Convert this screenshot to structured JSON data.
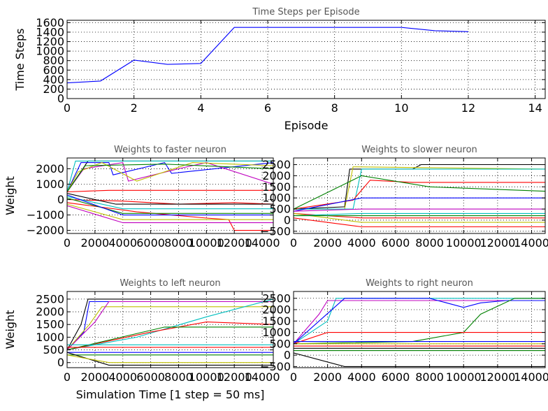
{
  "chart_data": [
    {
      "type": "line",
      "title": "Time Steps per Episode",
      "xlabel": "Episode",
      "ylabel": "Time Steps",
      "xlim": [
        0,
        14.3
      ],
      "ylim": [
        0,
        1650
      ],
      "xticks": [
        0,
        2,
        4,
        6,
        8,
        10,
        12,
        14
      ],
      "yticks": [
        0,
        200,
        400,
        600,
        800,
        1000,
        1200,
        1400,
        1600
      ],
      "grid": true,
      "series": [
        {
          "color": "#0000ff",
          "x": [
            0,
            1,
            2,
            3,
            4,
            5,
            6,
            7,
            8,
            9,
            10,
            11,
            12
          ],
          "y": [
            330,
            370,
            810,
            720,
            740,
            1500,
            1500,
            1500,
            1500,
            1500,
            1500,
            1430,
            1410
          ]
        }
      ]
    },
    {
      "type": "line",
      "title": "Weights to faster neuron",
      "xlabel": "",
      "ylabel": "Weight",
      "xlim": [
        0,
        14800
      ],
      "ylim": [
        -2200,
        2700
      ],
      "xticks": [
        0,
        2000,
        4000,
        6000,
        8000,
        10000,
        12000,
        14000
      ],
      "yticks": [
        -2000,
        -1000,
        0,
        1000,
        2000
      ],
      "grid": true,
      "series": [
        {
          "color": "#000000",
          "x": [
            0,
            1500,
            2300,
            2400,
            14800
          ],
          "y": [
            500,
            2500,
            2500,
            2500,
            2500
          ]
        },
        {
          "color": "#0000ff",
          "x": [
            0,
            1000,
            3000,
            3300,
            7000,
            7500,
            14800
          ],
          "y": [
            500,
            2400,
            2400,
            1600,
            2400,
            1700,
            2400
          ]
        },
        {
          "color": "#bf00bf",
          "x": [
            0,
            1200,
            4000,
            4400,
            8000,
            10000,
            14800
          ],
          "y": [
            500,
            2000,
            2400,
            1200,
            2000,
            2400,
            1000
          ]
        },
        {
          "color": "#bfbf00",
          "x": [
            0,
            800,
            2500,
            5000,
            9000,
            14800
          ],
          "y": [
            500,
            1800,
            2400,
            1200,
            2400,
            2200
          ]
        },
        {
          "color": "#00bfbf",
          "x": [
            0,
            600,
            4000,
            14800
          ],
          "y": [
            500,
            2500,
            2500,
            2500
          ]
        },
        {
          "color": "#008000",
          "x": [
            0,
            1300,
            7000,
            14800
          ],
          "y": [
            500,
            2200,
            2300,
            2000
          ]
        },
        {
          "color": "#ff0000",
          "x": [
            0,
            3000,
            4500,
            14800
          ],
          "y": [
            500,
            600,
            600,
            600
          ]
        },
        {
          "color": "#ff0000",
          "x": [
            0,
            4000,
            8000,
            12000,
            14800
          ],
          "y": [
            0,
            -100,
            -300,
            -200,
            -300
          ]
        },
        {
          "color": "#ff0000",
          "x": [
            0,
            5000,
            10000,
            11600,
            12000,
            14800
          ],
          "y": [
            -200,
            -800,
            -1200,
            -1300,
            -2000,
            -2000
          ]
        },
        {
          "color": "#bfbf00",
          "x": [
            0,
            4000,
            14800
          ],
          "y": [
            -300,
            -1300,
            -1300
          ]
        },
        {
          "color": "#bf00bf",
          "x": [
            0,
            4000,
            14800
          ],
          "y": [
            -400,
            -1500,
            -1500
          ]
        },
        {
          "color": "#000000",
          "x": [
            0,
            3500,
            14800
          ],
          "y": [
            400,
            -300,
            -300
          ]
        },
        {
          "color": "#00bfbf",
          "x": [
            0,
            4000,
            14800
          ],
          "y": [
            200,
            -600,
            -600
          ]
        },
        {
          "color": "#008000",
          "x": [
            0,
            4000,
            14800
          ],
          "y": [
            100,
            -900,
            -900
          ]
        },
        {
          "color": "#0000ff",
          "x": [
            0,
            4000,
            14800
          ],
          "y": [
            300,
            -1000,
            -1000
          ]
        }
      ]
    },
    {
      "type": "line",
      "title": "Weights to slower neuron",
      "xlabel": "",
      "ylabel": "",
      "xlim": [
        0,
        14800
      ],
      "ylim": [
        -600,
        2800
      ],
      "xticks": [
        0,
        2000,
        4000,
        6000,
        8000,
        10000,
        12000,
        14000
      ],
      "yticks": [
        -500,
        0,
        500,
        1000,
        1500,
        2000,
        2500
      ],
      "grid": true,
      "series": [
        {
          "color": "#000000",
          "x": [
            0,
            3000,
            3300,
            7000,
            7500,
            14800
          ],
          "y": [
            500,
            600,
            2300,
            2300,
            2500,
            2500
          ]
        },
        {
          "color": "#bfbf00",
          "x": [
            0,
            3000,
            3500,
            14800
          ],
          "y": [
            500,
            500,
            2400,
            2300
          ]
        },
        {
          "color": "#00bfbf",
          "x": [
            0,
            3500,
            4000,
            14800
          ],
          "y": [
            500,
            500,
            2300,
            2300
          ]
        },
        {
          "color": "#ff0000",
          "x": [
            0,
            3500,
            4500,
            7000,
            14800
          ],
          "y": [
            500,
            900,
            1800,
            1700,
            1700
          ]
        },
        {
          "color": "#008000",
          "x": [
            0,
            4000,
            8000,
            14800
          ],
          "y": [
            500,
            2000,
            1500,
            1300
          ]
        },
        {
          "color": "#0000ff",
          "x": [
            0,
            4000,
            14800
          ],
          "y": [
            400,
            1000,
            1000
          ]
        },
        {
          "color": "#bf00bf",
          "x": [
            0,
            4000,
            14800
          ],
          "y": [
            400,
            500,
            500
          ]
        },
        {
          "color": "#ff0000",
          "x": [
            0,
            4000,
            14800
          ],
          "y": [
            300,
            100,
            100
          ]
        },
        {
          "color": "#bfbf00",
          "x": [
            0,
            4000,
            14800
          ],
          "y": [
            300,
            -100,
            -100
          ]
        },
        {
          "color": "#00bfbf",
          "x": [
            0,
            4000,
            14800
          ],
          "y": [
            200,
            300,
            300
          ]
        },
        {
          "color": "#008000",
          "x": [
            0,
            4000,
            14800
          ],
          "y": [
            200,
            200,
            200
          ]
        },
        {
          "color": "#ff0000",
          "x": [
            0,
            4000,
            14800
          ],
          "y": [
            100,
            -300,
            -300
          ]
        }
      ]
    },
    {
      "type": "line",
      "title": "Weights to left neuron",
      "xlabel": "Simulation Time [1 step = 50 ms]",
      "ylabel": "Weight",
      "xlim": [
        0,
        14800
      ],
      "ylim": [
        -200,
        2800
      ],
      "xticks": [
        0,
        2000,
        4000,
        6000,
        8000,
        10000,
        12000,
        14000
      ],
      "yticks": [
        0,
        500,
        1000,
        1500,
        2000,
        2500
      ],
      "grid": true,
      "series": [
        {
          "color": "#000000",
          "x": [
            0,
            1000,
            1500,
            14800
          ],
          "y": [
            500,
            1500,
            2500,
            2500
          ]
        },
        {
          "color": "#0000ff",
          "x": [
            0,
            1200,
            1600,
            14800
          ],
          "y": [
            500,
            1200,
            2400,
            2400
          ]
        },
        {
          "color": "#bfbf00",
          "x": [
            0,
            1600,
            2500,
            14800
          ],
          "y": [
            500,
            1500,
            2200,
            2200
          ]
        },
        {
          "color": "#bf00bf",
          "x": [
            0,
            2000,
            3000,
            14800
          ],
          "y": [
            500,
            1600,
            2400,
            2400
          ]
        },
        {
          "color": "#00bfbf",
          "x": [
            0,
            5000,
            10000,
            14800
          ],
          "y": [
            500,
            1000,
            1800,
            2500
          ]
        },
        {
          "color": "#ff0000",
          "x": [
            0,
            6000,
            10000,
            14800
          ],
          "y": [
            500,
            1200,
            1600,
            1500
          ]
        },
        {
          "color": "#008000",
          "x": [
            0,
            7000,
            14800
          ],
          "y": [
            500,
            1400,
            1400
          ]
        },
        {
          "color": "#ff0000",
          "x": [
            0,
            14800
          ],
          "y": [
            600,
            600
          ]
        },
        {
          "color": "#0000ff",
          "x": [
            0,
            14800
          ],
          "y": [
            400,
            400
          ]
        },
        {
          "color": "#008000",
          "x": [
            0,
            14800
          ],
          "y": [
            300,
            300
          ]
        },
        {
          "color": "#00bfbf",
          "x": [
            0,
            14800
          ],
          "y": [
            700,
            700
          ]
        },
        {
          "color": "#000000",
          "x": [
            0,
            3000,
            14800
          ],
          "y": [
            400,
            -100,
            -100
          ]
        },
        {
          "color": "#bfbf00",
          "x": [
            0,
            3000,
            14800
          ],
          "y": [
            300,
            0,
            0
          ]
        }
      ]
    },
    {
      "type": "line",
      "title": "Weights to right neuron",
      "xlabel": "",
      "ylabel": "",
      "xlim": [
        0,
        14800
      ],
      "ylim": [
        -550,
        2800
      ],
      "xticks": [
        0,
        2000,
        4000,
        6000,
        8000,
        10000,
        12000,
        14000
      ],
      "yticks": [
        -500,
        0,
        500,
        1000,
        1500,
        2000,
        2500
      ],
      "grid": true,
      "series": [
        {
          "color": "#00bfbf",
          "x": [
            0,
            2000,
            2500,
            14800
          ],
          "y": [
            500,
            1500,
            2500,
            2500
          ]
        },
        {
          "color": "#bf00bf",
          "x": [
            0,
            1500,
            2000,
            14800
          ],
          "y": [
            500,
            1800,
            2400,
            2400
          ]
        },
        {
          "color": "#0000ff",
          "x": [
            0,
            1500,
            3000,
            8000,
            10000,
            11000,
            12500,
            14800
          ],
          "y": [
            500,
            1500,
            2500,
            2500,
            2100,
            2300,
            2400,
            2400
          ]
        },
        {
          "color": "#008000",
          "x": [
            0,
            7000,
            10000,
            11000,
            13000,
            14800
          ],
          "y": [
            500,
            600,
            1000,
            1800,
            2500,
            2500
          ]
        },
        {
          "color": "#ff0000",
          "x": [
            0,
            2000,
            14800
          ],
          "y": [
            500,
            1000,
            1000
          ]
        },
        {
          "color": "#bfbf00",
          "x": [
            0,
            14800
          ],
          "y": [
            500,
            500
          ]
        },
        {
          "color": "#ff0000",
          "x": [
            0,
            14800
          ],
          "y": [
            400,
            400
          ]
        },
        {
          "color": "#000000",
          "x": [
            0,
            14800
          ],
          "y": [
            300,
            300
          ]
        },
        {
          "color": "#008000",
          "x": [
            0,
            14800
          ],
          "y": [
            200,
            200
          ]
        },
        {
          "color": "#000000",
          "x": [
            0,
            3000,
            14800
          ],
          "y": [
            100,
            -500,
            -500
          ]
        },
        {
          "color": "#0000ff",
          "x": [
            0,
            14800
          ],
          "y": [
            600,
            600
          ]
        }
      ]
    }
  ]
}
